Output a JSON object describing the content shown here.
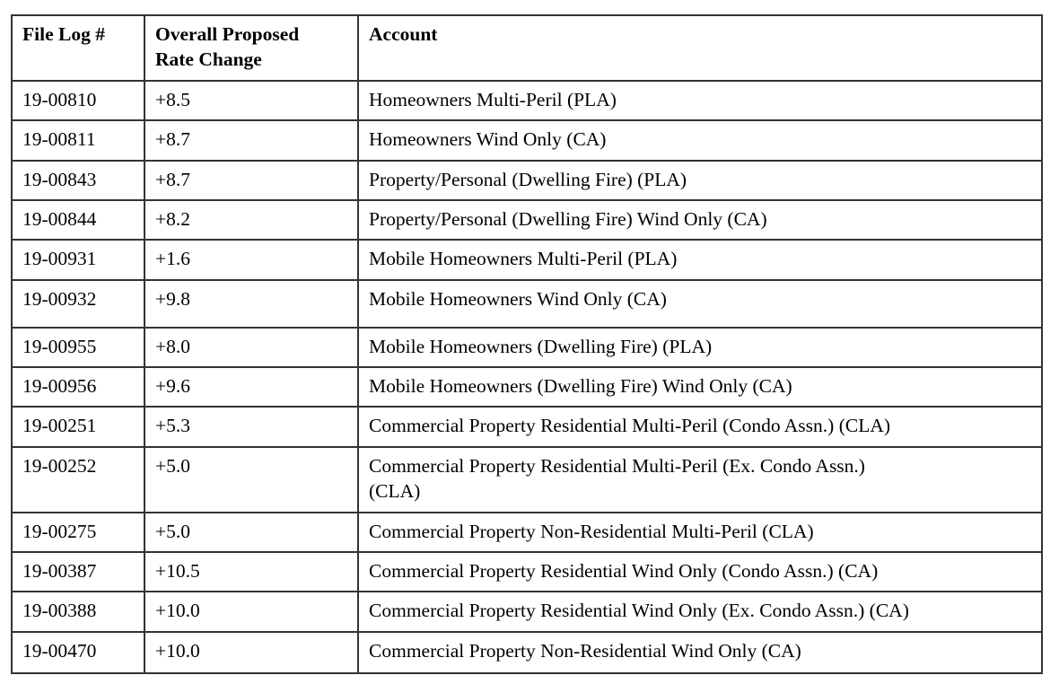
{
  "table": {
    "columns": [
      {
        "label": "File Log #"
      },
      {
        "label": "Overall Proposed\nRate Change"
      },
      {
        "label": "Account"
      }
    ],
    "rows": [
      {
        "file_log": "19-00810",
        "rate_change": "+8.5",
        "account": "Homeowners Multi-Peril (PLA)"
      },
      {
        "file_log": "19-00811",
        "rate_change": "+8.7",
        "account": "Homeowners Wind Only (CA)"
      },
      {
        "file_log": "19-00843",
        "rate_change": "+8.7",
        "account": "Property/Personal (Dwelling Fire) (PLA)"
      },
      {
        "file_log": "19-00844",
        "rate_change": "+8.2",
        "account": "Property/Personal (Dwelling Fire) Wind Only (CA)"
      },
      {
        "file_log": "19-00931",
        "rate_change": "+1.6",
        "account": "Mobile Homeowners Multi-Peril (PLA)"
      },
      {
        "file_log": "19-00932",
        "rate_change": "+9.8",
        "account": "Mobile Homeowners Wind Only (CA)"
      },
      {
        "file_log": "19-00955",
        "rate_change": "+8.0",
        "account": "Mobile Homeowners (Dwelling Fire) (PLA)"
      },
      {
        "file_log": "19-00956",
        "rate_change": "+9.6",
        "account": "Mobile Homeowners (Dwelling Fire) Wind Only (CA)"
      },
      {
        "file_log": "19-00251",
        "rate_change": "+5.3",
        "account": "Commercial Property Residential Multi-Peril (Condo Assn.) (CLA)"
      },
      {
        "file_log": "19-00252",
        "rate_change": "+5.0",
        "account": "Commercial Property Residential Multi-Peril (Ex. Condo Assn.)\n(CLA)"
      },
      {
        "file_log": "19-00275",
        "rate_change": "+5.0",
        "account": "Commercial Property Non-Residential Multi-Peril (CLA)"
      },
      {
        "file_log": "19-00387",
        "rate_change": "+10.5",
        "account": "Commercial Property Residential Wind Only (Condo Assn.) (CA)"
      },
      {
        "file_log": "19-00388",
        "rate_change": "+10.0",
        "account": "Commercial Property Residential Wind Only (Ex. Condo Assn.) (CA)"
      },
      {
        "file_log": "19-00470",
        "rate_change": "+10.0",
        "account": "Commercial Property Non-Residential Wind Only (CA)"
      }
    ]
  }
}
